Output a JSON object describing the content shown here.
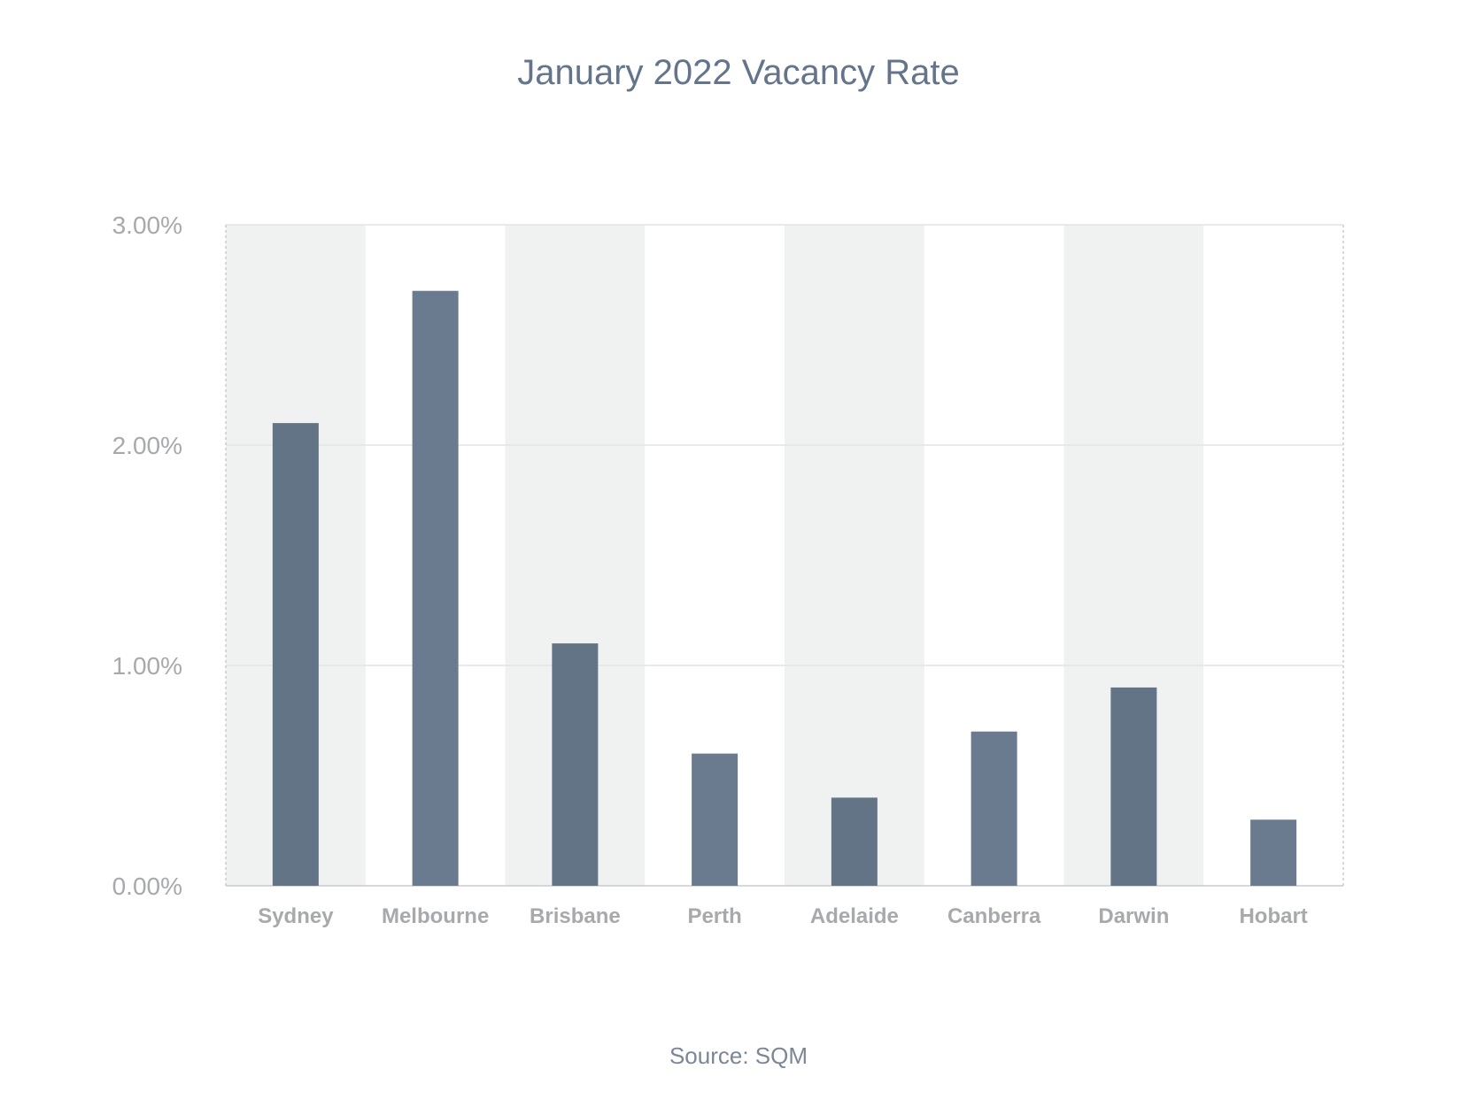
{
  "chart_data": {
    "type": "bar",
    "title": "January 2022 Vacancy Rate",
    "source": "Source: SQM",
    "categories": [
      "Sydney",
      "Melbourne",
      "Brisbane",
      "Perth",
      "Adelaide",
      "Canberra",
      "Darwin",
      "Hobart"
    ],
    "values": [
      2.1,
      2.7,
      1.1,
      0.6,
      0.4,
      0.7,
      0.9,
      0.3
    ],
    "unit": "%",
    "ylim": [
      0,
      3
    ],
    "yticks": [
      "0.00%",
      "1.00%",
      "2.00%",
      "3.00%"
    ],
    "xlabel": "",
    "ylabel": "",
    "grid": true,
    "legend": "none",
    "colors": {
      "bar_odd": "#647487",
      "bar_even": "#6a7a8f",
      "band": "#f0f1f1",
      "grid": "#e3e4e5",
      "title": "#64748b",
      "tick": "#a7a9ac"
    }
  }
}
